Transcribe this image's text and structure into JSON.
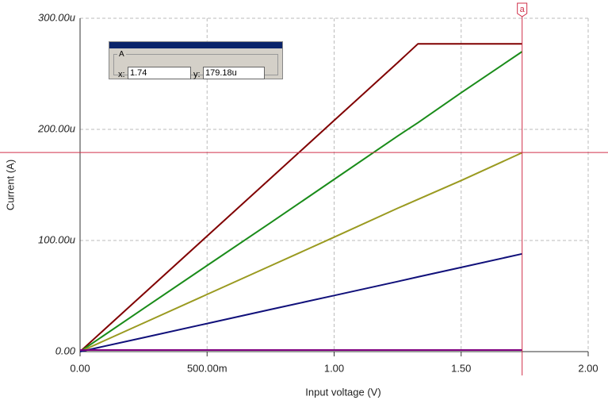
{
  "chart_data": {
    "type": "line",
    "x_label": "Input voltage (V)",
    "y_label": "Current (A)",
    "x": [
      0,
      0.25,
      0.5,
      0.75,
      1,
      1.25,
      1.33,
      1.5,
      1.74
    ],
    "series": [
      {
        "color": "#800000",
        "values": [
          0,
          5.2e-05,
          0.000104,
          0.000156,
          0.000208,
          0.00026,
          0.000277,
          0.000277,
          0.000277
        ]
      },
      {
        "color": "#1a8c1a",
        "values": [
          0,
          3.88e-05,
          7.75e-05,
          0.000116,
          0.000155,
          0.000194,
          0.000206,
          0.000233,
          0.00027
        ]
      },
      {
        "color": "#9a9a20",
        "values": [
          0,
          2.57e-05,
          5.15e-05,
          7.72e-05,
          0.000103,
          0.000129,
          0.000137,
          0.000154,
          0.000179
        ]
      },
      {
        "color": "#10107a",
        "values": [
          0,
          1.26e-05,
          2.53e-05,
          3.79e-05,
          5.05e-05,
          6.31e-05,
          6.72e-05,
          7.58e-05,
          8.8e-05
        ]
      },
      {
        "color": "#800080",
        "values": [
          1.4e-06,
          1.4e-06,
          1.4e-06,
          1.4e-06,
          1.4e-06,
          1.4e-06,
          1.4e-06,
          1.4e-06,
          1.4e-06
        ]
      }
    ],
    "xlim": [
      0,
      2
    ],
    "ylim": [
      0,
      0.0003
    ],
    "xticks": [
      {
        "value": 0,
        "label": "0.00"
      },
      {
        "value": 0.5,
        "label": "500.00m"
      },
      {
        "value": 1,
        "label": "1.00"
      },
      {
        "value": 1.5,
        "label": "1.50"
      },
      {
        "value": 2,
        "label": "2.00"
      }
    ],
    "yticks": [
      {
        "value": 0,
        "label": "0.00"
      },
      {
        "value": 0.0001,
        "label": "100.00u"
      },
      {
        "value": 0.0002,
        "label": "200.00u"
      },
      {
        "value": 0.0003,
        "label": "300.00u"
      }
    ],
    "grid": true,
    "cursor": {
      "marker": "a",
      "color": "#d0304a",
      "panel_title": "A",
      "x_caption": "x:",
      "y_caption": "y:",
      "x": {
        "value": 1.74,
        "label": "1.74"
      },
      "y": {
        "value": 0.00017918,
        "label": "179.18u"
      }
    }
  }
}
